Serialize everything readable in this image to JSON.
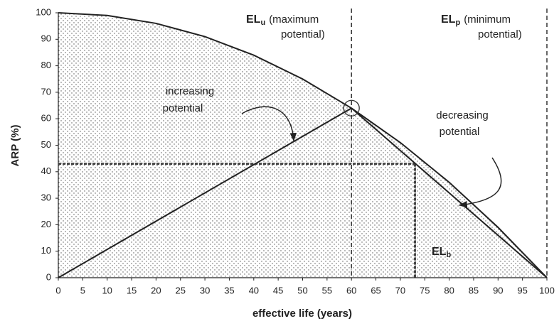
{
  "chart_data": {
    "type": "line",
    "xlabel": "effective life (years)",
    "ylabel": "ARP (%)",
    "xlim": [
      0,
      100
    ],
    "ylim": [
      0,
      100
    ],
    "xticks": [
      0,
      5,
      10,
      15,
      20,
      25,
      30,
      35,
      40,
      45,
      50,
      55,
      60,
      65,
      70,
      75,
      80,
      85,
      90,
      95,
      100
    ],
    "yticks": [
      0,
      10,
      20,
      30,
      40,
      50,
      60,
      70,
      80,
      90,
      100
    ],
    "series": [
      {
        "color": "#222222",
        "x": [
          0,
          10,
          20,
          30,
          40,
          50,
          60,
          70,
          80,
          90,
          100
        ],
        "values": [
          100,
          99,
          96,
          91,
          84,
          75,
          64,
          51,
          36,
          19,
          0
        ]
      },
      {
        "color": "#222222",
        "x": [
          0,
          60
        ],
        "values": [
          0,
          64
        ]
      },
      {
        "color": "#222222",
        "x": [
          60,
          100
        ],
        "values": [
          64,
          0
        ]
      }
    ],
    "vlines": [
      60,
      100
    ],
    "breakeven": {
      "x": 73,
      "y": 43
    },
    "annotations": [
      {
        "label": "EL",
        "sub": "u",
        "text": [
          "(maximum",
          "potential)"
        ]
      },
      {
        "label": "EL",
        "sub": "p",
        "text": [
          "(minimum",
          "potential)"
        ]
      },
      {
        "label": "EL",
        "sub": "b"
      },
      {
        "text": [
          "increasing",
          "potential"
        ]
      },
      {
        "text": [
          "decreasing",
          "potential"
        ]
      }
    ]
  }
}
